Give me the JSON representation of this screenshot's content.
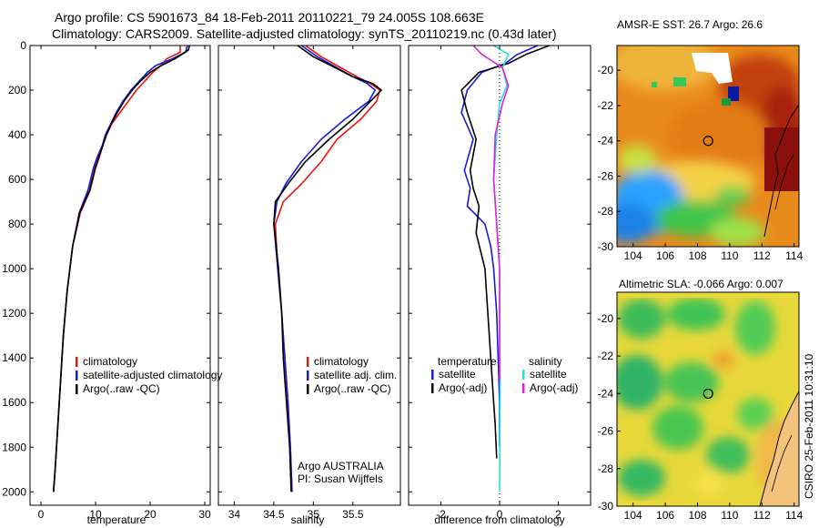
{
  "header": {
    "line1": "Argo profile: CS 5901673_84 18-Feb-2011 20110221_79 24.005S 108.663E",
    "line2": "Climatology: CARS2009. Satellite-adjusted climatology: synTS_20110219.nc (0.43d later)"
  },
  "side_label": "CSIRO 25-Feb-2011 10:31:10",
  "colors": {
    "climatology": "#e8150d",
    "satellite": "#1a1ad8",
    "argo": "#000000",
    "sal_satellite": "#22e0e0",
    "sal_argo": "#e020e0"
  },
  "chart_data": [
    {
      "type": "line",
      "id": "temperature",
      "xlabel": "temperature",
      "ylabel": "",
      "xlim": [
        -2,
        31
      ],
      "ylim": [
        2060,
        0
      ],
      "xticks": [
        0,
        10,
        20,
        30
      ],
      "yticks": [
        0,
        200,
        400,
        600,
        800,
        1000,
        1200,
        1400,
        1600,
        1800,
        2000
      ],
      "legend": [
        "climatology",
        "satellite-adjusted climatology",
        "Argo(..raw -QC)"
      ],
      "series": [
        {
          "name": "climatology",
          "color": "#e8150d",
          "x": [
            25.5,
            25.5,
            23,
            22,
            20.5,
            19,
            17.5,
            16,
            14.5,
            13,
            12,
            11.3,
            10.7,
            10,
            9,
            7.2,
            5.8,
            4.8,
            4.1,
            3.6,
            3.1,
            2.6,
            2.3
          ],
          "y": [
            0,
            30,
            60,
            90,
            120,
            160,
            200,
            250,
            300,
            350,
            400,
            450,
            500,
            550,
            650,
            750,
            900,
            1100,
            1300,
            1500,
            1700,
            1900,
            2000
          ]
        },
        {
          "name": "satellite-adjusted climatology",
          "color": "#1a1ad8",
          "x": [
            26.8,
            26.5,
            24,
            21,
            19.5,
            18,
            16.5,
            15,
            13.8,
            12.8,
            11.8,
            11.2,
            10.3,
            9.6,
            8.6,
            7,
            5.8,
            4.8,
            4.1,
            3.6,
            3.1,
            2.6,
            2.3
          ],
          "y": [
            0,
            30,
            60,
            90,
            120,
            160,
            200,
            250,
            300,
            350,
            400,
            450,
            500,
            550,
            650,
            750,
            900,
            1100,
            1300,
            1500,
            1700,
            1900,
            2000
          ]
        },
        {
          "name": "Argo(..raw -QC)",
          "color": "#000000",
          "x": [
            27.2,
            27,
            24.5,
            22,
            20,
            18.2,
            16.7,
            15.2,
            14,
            12.9,
            12,
            11.3,
            10.6,
            9.9,
            8.9,
            7.1,
            5.8,
            4.8,
            4.1,
            3.6,
            3.1,
            2.6,
            2.3
          ],
          "y": [
            0,
            20,
            60,
            90,
            120,
            160,
            200,
            250,
            300,
            350,
            400,
            450,
            500,
            550,
            650,
            750,
            900,
            1100,
            1300,
            1500,
            1700,
            1900,
            2000
          ]
        }
      ]
    },
    {
      "type": "line",
      "id": "salinity",
      "xlabel": "salinity",
      "ylabel": "",
      "xlim": [
        33.8,
        36.1
      ],
      "ylim": [
        2060,
        0
      ],
      "xticks": [
        34,
        34.5,
        35,
        35.5
      ],
      "yticks": [
        0,
        200,
        400,
        600,
        800,
        1000,
        1200,
        1400,
        1600,
        1800,
        2000
      ],
      "legend": [
        "climatology",
        "satellite adj. clim.",
        "Argo(..raw -QC)"
      ],
      "annotations": [
        "Argo AUSTRALIA",
        "PI: Susan Wijffels"
      ],
      "series": [
        {
          "name": "climatology",
          "color": "#e8150d",
          "x": [
            34.9,
            35.1,
            35.35,
            35.55,
            35.72,
            35.84,
            35.8,
            35.6,
            35.3,
            35.1,
            34.85,
            34.62,
            34.52,
            34.55,
            34.6,
            34.64,
            34.68,
            34.71,
            34.73
          ],
          "y": [
            0,
            50,
            100,
            140,
            170,
            200,
            250,
            330,
            420,
            520,
            620,
            700,
            800,
            1000,
            1200,
            1400,
            1600,
            1800,
            2000
          ]
        },
        {
          "name": "satellite adj. clim.",
          "color": "#1a1ad8",
          "x": [
            34.85,
            35.05,
            35.3,
            35.5,
            35.68,
            35.78,
            35.7,
            35.4,
            35.1,
            34.85,
            34.65,
            34.54,
            34.5,
            34.55,
            34.6,
            34.64,
            34.68,
            34.71,
            34.73
          ],
          "y": [
            0,
            50,
            100,
            140,
            170,
            200,
            250,
            330,
            420,
            520,
            620,
            700,
            800,
            1000,
            1200,
            1400,
            1600,
            1800,
            2000
          ]
        },
        {
          "name": "Argo(..raw -QC)",
          "color": "#000000",
          "x": [
            34.8,
            35.0,
            35.28,
            35.5,
            35.75,
            35.86,
            35.72,
            35.5,
            35.2,
            34.9,
            34.68,
            34.52,
            34.5,
            34.56,
            34.6,
            34.62,
            34.66,
            34.7,
            34.72
          ],
          "y": [
            0,
            50,
            100,
            140,
            170,
            200,
            250,
            330,
            420,
            520,
            620,
            700,
            800,
            1000,
            1200,
            1400,
            1600,
            1800,
            2000
          ]
        }
      ]
    },
    {
      "type": "line",
      "id": "difference",
      "xlabel": "difference from climatology",
      "ylabel": "",
      "xlim": [
        -3.1,
        3.1
      ],
      "ylim": [
        2060,
        0
      ],
      "xticks": [
        -2,
        0,
        2
      ],
      "yticks": [
        0,
        200,
        400,
        600,
        800,
        1000,
        1200,
        1400,
        1600,
        1800,
        2000
      ],
      "legend_temperature": {
        "title": "temperature",
        "items": [
          "satellite",
          "Argo(-adj)"
        ]
      },
      "legend_salinity": {
        "title": "salinity",
        "items": [
          "satellite",
          "Argo(-adj)"
        ]
      },
      "series": [
        {
          "name": "temperature satellite",
          "color": "#1a1ad8",
          "x": [
            1.3,
            0.6,
            0.2,
            -0.6,
            -1.1,
            -1.3,
            -0.9,
            -1.2,
            -1.0,
            -1.1,
            -0.5,
            -0.3,
            -0.2,
            -0.1,
            -0.05,
            0,
            0
          ],
          "y": [
            0,
            40,
            80,
            120,
            200,
            300,
            420,
            560,
            640,
            720,
            800,
            900,
            1000,
            1200,
            1400,
            1600,
            1800
          ]
        },
        {
          "name": "temperature Argo(-adj)",
          "color": "#000000",
          "x": [
            1.7,
            0.9,
            0.3,
            -0.7,
            -1.3,
            -1.1,
            -0.8,
            -1.0,
            -0.9,
            -0.7,
            -0.8,
            -0.5,
            -0.4,
            -0.3,
            -0.2,
            -0.15,
            -0.1
          ],
          "y": [
            0,
            40,
            80,
            120,
            200,
            300,
            420,
            560,
            640,
            720,
            840,
            1000,
            1200,
            1400,
            1600,
            1700,
            1850
          ]
        },
        {
          "name": "salinity satellite",
          "color": "#22e0e0",
          "x": [
            -0.2,
            0.3,
            0.1,
            0.25,
            0.0,
            -0.1,
            -0.2,
            -0.1,
            0.0,
            0.0,
            0.02,
            0.01,
            0.0
          ],
          "y": [
            0,
            40,
            100,
            180,
            260,
            400,
            600,
            800,
            1000,
            1200,
            1500,
            1800,
            2000
          ]
        },
        {
          "name": "salinity Argo(-adj)",
          "color": "#e020e0",
          "x": [
            -0.9,
            -0.6,
            0.1,
            0.3,
            0.1,
            -0.15,
            -0.2,
            -0.1,
            0.0,
            0.0,
            0.0
          ],
          "y": [
            0,
            40,
            100,
            180,
            260,
            400,
            600,
            800,
            1000,
            1200,
            1500
          ]
        }
      ]
    },
    {
      "type": "heatmap",
      "id": "sst_map",
      "title": "AMSR-E SST: 26.7  Argo: 26.6",
      "xlim": [
        103,
        114.3
      ],
      "ylim": [
        -30,
        -18.6
      ],
      "xticks": [
        104,
        106,
        108,
        110,
        112,
        114
      ],
      "yticks": [
        -20,
        -22,
        -24,
        -26,
        -28,
        -30
      ],
      "marker": [
        108.663,
        -24.005
      ]
    },
    {
      "type": "heatmap",
      "id": "sla_map",
      "title": "Altimetric SLA: -0.066  Argo: 0.007",
      "xlim": [
        103,
        114.3
      ],
      "ylim": [
        -30,
        -18.6
      ],
      "xticks": [
        104,
        106,
        108,
        110,
        112,
        114
      ],
      "yticks": [
        -20,
        -22,
        -24,
        -26,
        -28,
        -30
      ],
      "marker": [
        108.663,
        -24.005
      ]
    }
  ]
}
